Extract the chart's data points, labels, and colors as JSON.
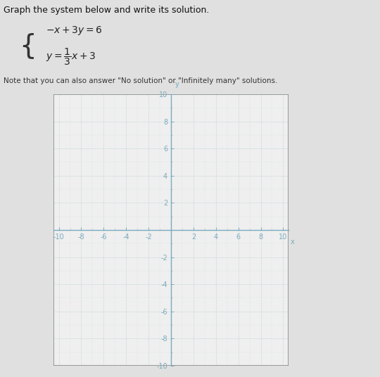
{
  "xlim": [
    -10.5,
    10.5
  ],
  "ylim": [
    -10,
    10
  ],
  "grid_color": "#8ab0bc",
  "grid_alpha": 0.6,
  "axis_color": "#7aaabc",
  "tick_label_color": "#7aaabc",
  "tick_label_fontsize": 7,
  "plot_bg": "#efefef",
  "fig_bg": "#e0e0e0",
  "border_color": "#888888",
  "title": "Graph the system below and write its solution.",
  "xlabel": "x",
  "ylabel": "y",
  "figsize": [
    5.4,
    5.36
  ],
  "dpi": 100
}
